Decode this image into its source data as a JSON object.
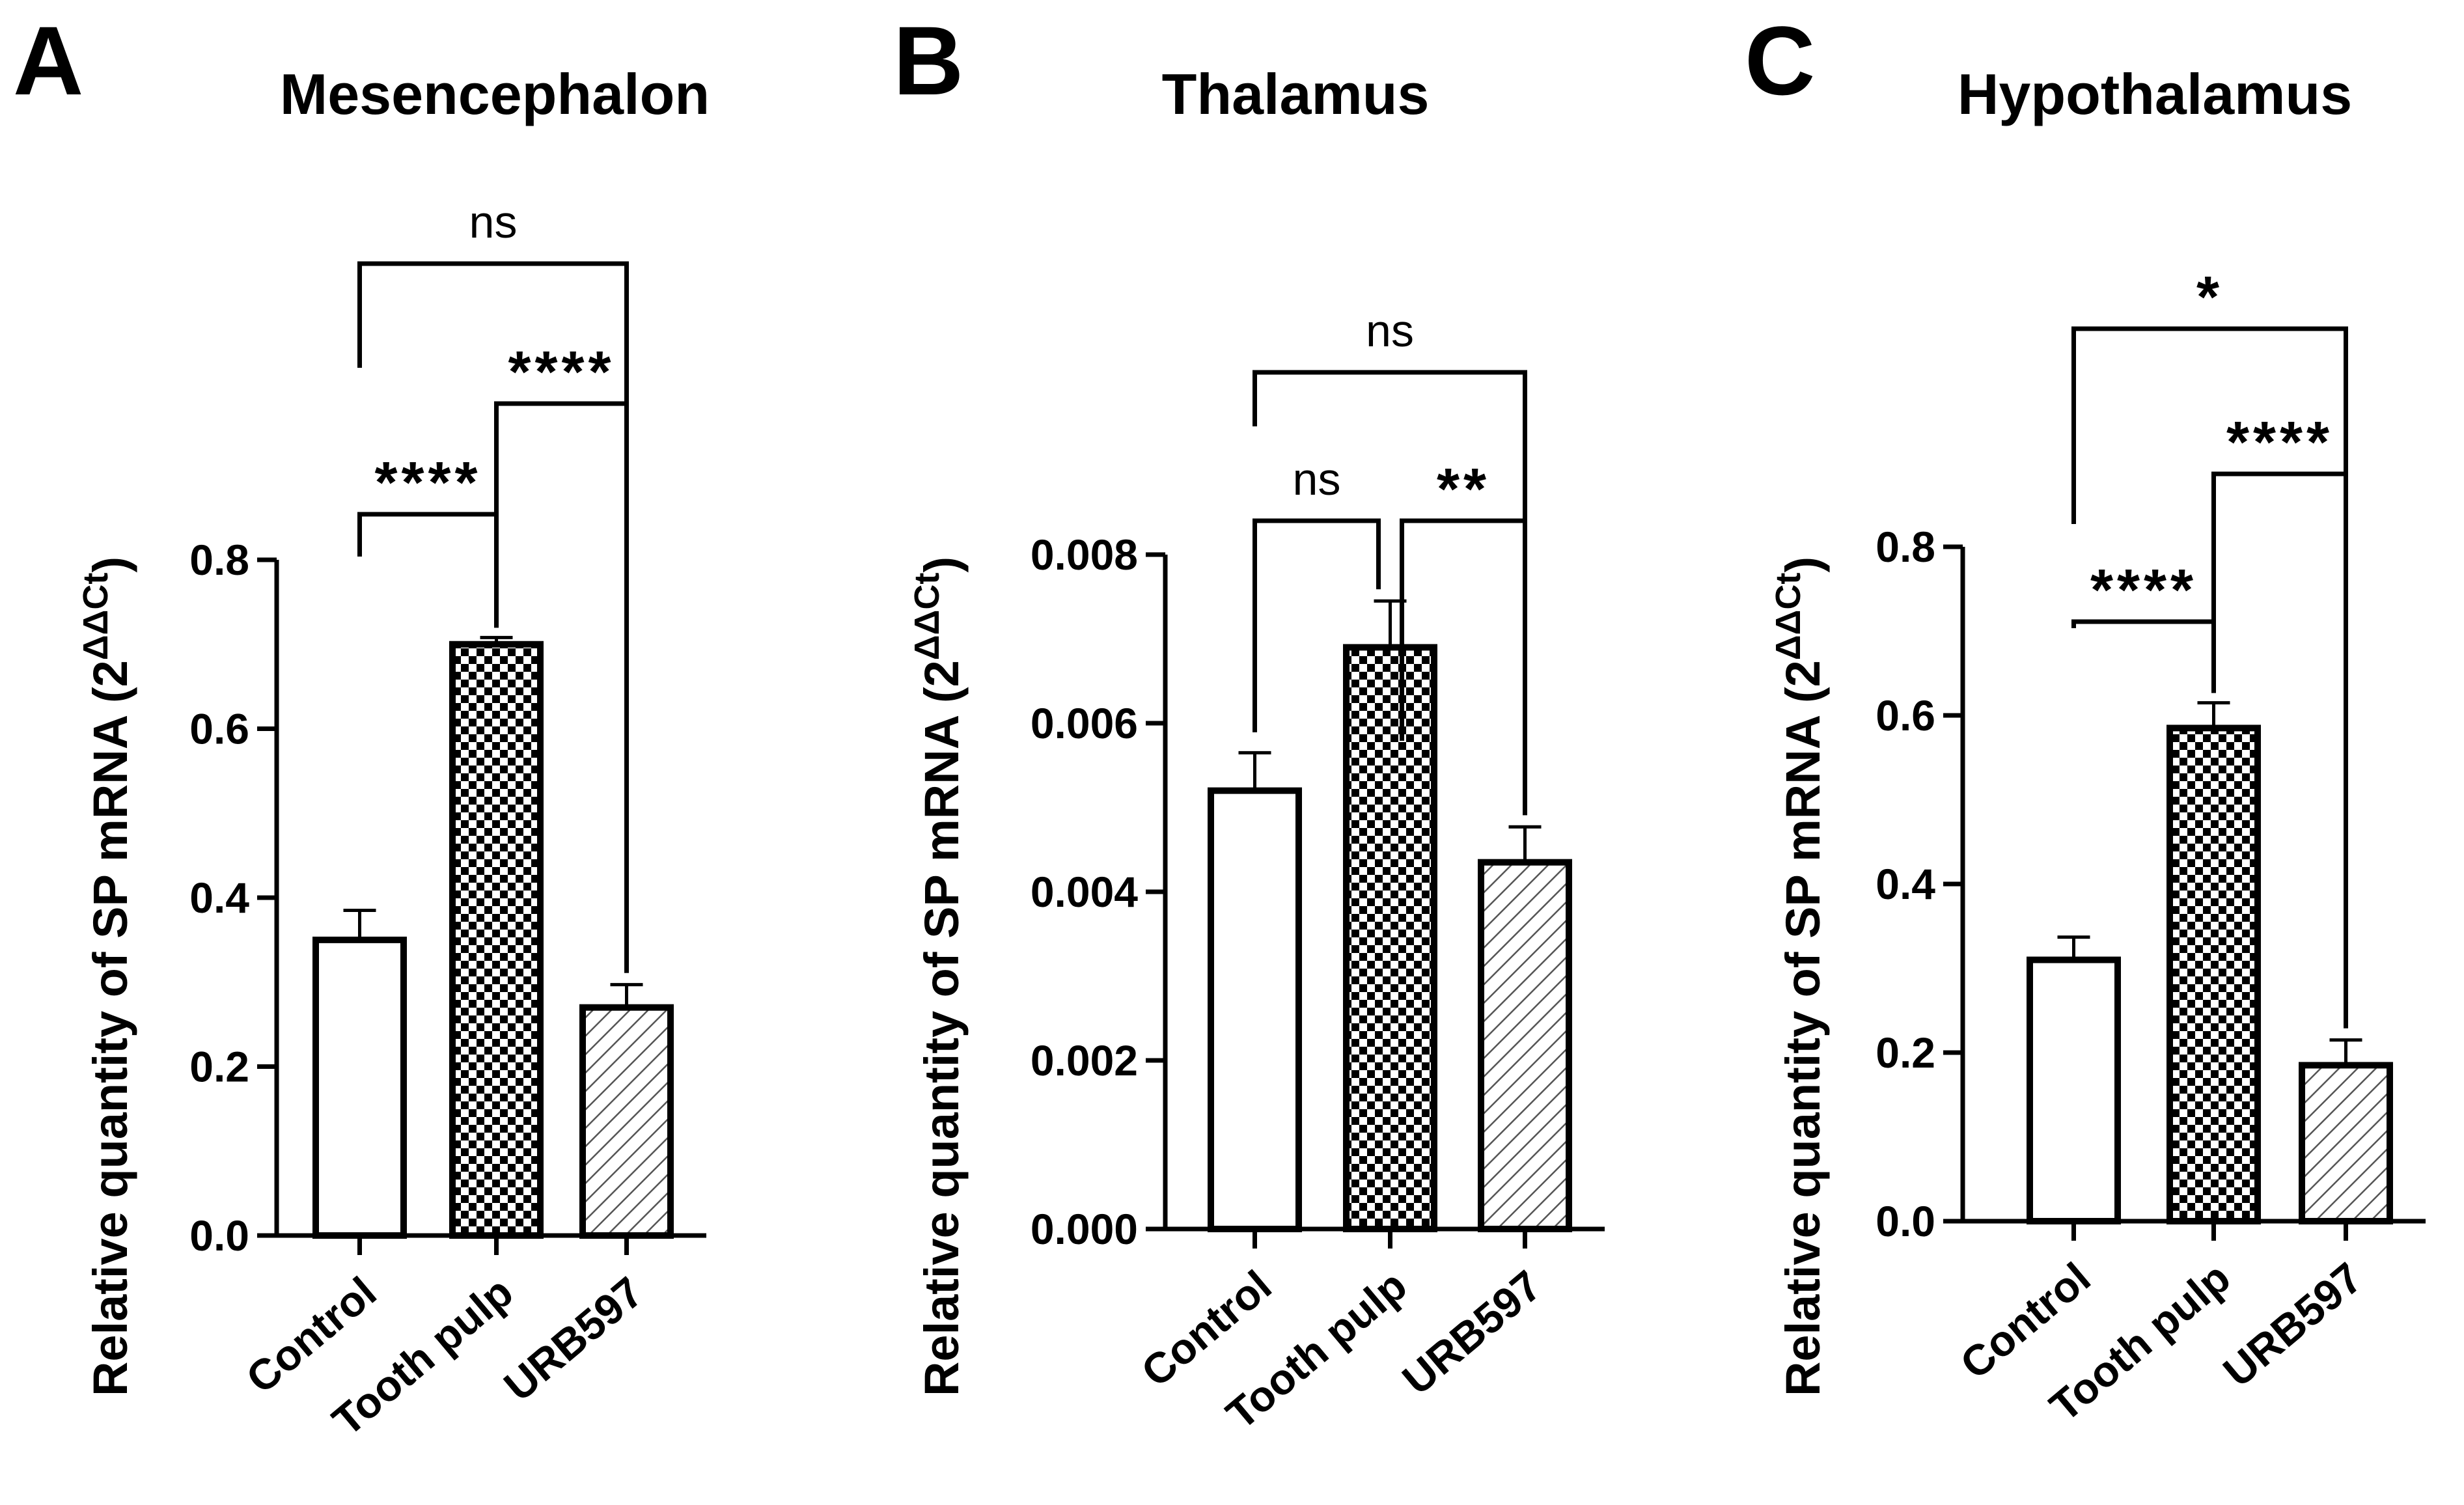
{
  "chart_data": [
    {
      "type": "bar",
      "panel": "A",
      "title": "Mesencephalon",
      "ylabel": "Relative quantity of SP mRNA (2",
      "ylabel_sup": "ΔΔCt",
      "ylabel_close": ")",
      "categories": [
        "Control",
        "Tooth pulp",
        "URB597"
      ],
      "values": [
        0.35,
        0.7,
        0.27
      ],
      "errors": [
        0.035,
        0.008,
        0.027
      ],
      "patterns": [
        "none",
        "checker",
        "hatch"
      ],
      "ylim": [
        0,
        0.8
      ],
      "yticks": [
        0.0,
        0.2,
        0.4,
        0.6,
        0.8
      ],
      "tick_labels": [
        "0.0",
        "0.2",
        "0.4",
        "0.6",
        "0.8"
      ],
      "comparisons": [
        {
          "from": 0,
          "to": 1,
          "label": "****"
        },
        {
          "from": 1,
          "to": 2,
          "label": "****"
        },
        {
          "from": 0,
          "to": 2,
          "label": "ns"
        }
      ]
    },
    {
      "type": "bar",
      "panel": "B",
      "title": "Thalamus",
      "ylabel": "Relative quantity of SP mRNA (2",
      "ylabel_sup": "ΔΔCt",
      "ylabel_close": ")",
      "categories": [
        "Control",
        "Tooth pulp",
        "URB597"
      ],
      "values": [
        0.0052,
        0.0069,
        0.00435
      ],
      "errors": [
        0.00045,
        0.00055,
        0.00042
      ],
      "patterns": [
        "none",
        "checker",
        "hatch"
      ],
      "ylim": [
        0,
        0.008
      ],
      "yticks": [
        0.0,
        0.002,
        0.004,
        0.006,
        0.008
      ],
      "tick_labels": [
        "0.000",
        "0.002",
        "0.004",
        "0.006",
        "0.008"
      ],
      "comparisons": [
        {
          "from": 0,
          "to": 1,
          "label": "ns"
        },
        {
          "from": 1,
          "to": 2,
          "label": "**"
        },
        {
          "from": 0,
          "to": 2,
          "label": "ns"
        }
      ]
    },
    {
      "type": "bar",
      "panel": "C",
      "title": "Hypothalamus",
      "ylabel": "Relative quantity of SP mRNA (2",
      "ylabel_sup": "ΔΔCt",
      "ylabel_close": ")",
      "categories": [
        "Control",
        "Tooth pulp",
        "URB597"
      ],
      "values": [
        0.31,
        0.585,
        0.185
      ],
      "errors": [
        0.027,
        0.03,
        0.03
      ],
      "patterns": [
        "none",
        "checker",
        "hatch"
      ],
      "ylim": [
        0,
        0.8
      ],
      "yticks": [
        0.0,
        0.2,
        0.4,
        0.6,
        0.8
      ],
      "tick_labels": [
        "0.0",
        "0.2",
        "0.4",
        "0.6",
        "0.8"
      ],
      "comparisons": [
        {
          "from": 0,
          "to": 1,
          "label": "****"
        },
        {
          "from": 1,
          "to": 2,
          "label": "****"
        },
        {
          "from": 0,
          "to": 2,
          "label": "*"
        }
      ]
    }
  ]
}
